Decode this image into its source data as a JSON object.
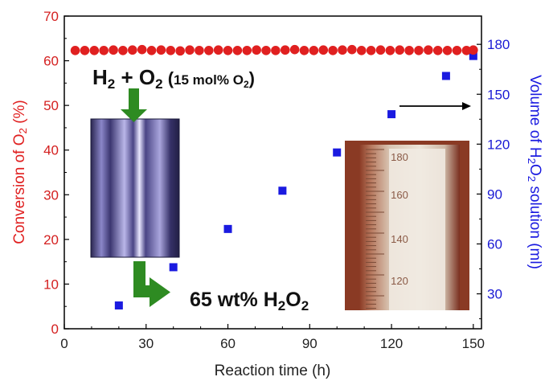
{
  "chart_data": {
    "type": "scatter",
    "xlabel": "Reaction time (h)",
    "x_ticks": [
      0,
      30,
      60,
      90,
      120,
      150
    ],
    "xlim": [
      0,
      153
    ],
    "y_left": {
      "label_parts": [
        "Conversion of O",
        "2",
        " (%)"
      ],
      "ticks": [
        0,
        10,
        20,
        30,
        40,
        50,
        60,
        70
      ],
      "ylim": [
        0,
        70
      ],
      "color": "#e02020"
    },
    "y_right": {
      "label_parts": [
        "Volume of H",
        "2",
        "O",
        "2",
        " solution (ml)"
      ],
      "ticks": [
        30,
        60,
        90,
        120,
        150,
        180
      ],
      "ylim": [
        9,
        197
      ],
      "color": "#1a1ae0"
    },
    "series": [
      {
        "axis": "left",
        "marker": "circle",
        "color": "#e02020",
        "points": [
          [
            4,
            62.3
          ],
          [
            7.5,
            62.3
          ],
          [
            11,
            62.3
          ],
          [
            14.5,
            62.3
          ],
          [
            18,
            62.4
          ],
          [
            21.5,
            62.3
          ],
          [
            25,
            62.4
          ],
          [
            28.5,
            62.5
          ],
          [
            32,
            62.3
          ],
          [
            35.5,
            62.4
          ],
          [
            39,
            62.3
          ],
          [
            42.5,
            62.2
          ],
          [
            46,
            62.4
          ],
          [
            49.5,
            62.3
          ],
          [
            53,
            62.3
          ],
          [
            56.5,
            62.4
          ],
          [
            60,
            62.3
          ],
          [
            63.5,
            62.3
          ],
          [
            67,
            62.3
          ],
          [
            70.5,
            62.4
          ],
          [
            74,
            62.3
          ],
          [
            77.5,
            62.3
          ],
          [
            81,
            62.4
          ],
          [
            84.5,
            62.5
          ],
          [
            88,
            62.3
          ],
          [
            91.5,
            62.3
          ],
          [
            95,
            62.4
          ],
          [
            98.5,
            62.3
          ],
          [
            102,
            62.4
          ],
          [
            105.5,
            62.5
          ],
          [
            109,
            62.3
          ],
          [
            112.5,
            62.3
          ],
          [
            116,
            62.4
          ],
          [
            119.5,
            62.3
          ],
          [
            123,
            62.4
          ],
          [
            126.5,
            62.3
          ],
          [
            130,
            62.3
          ],
          [
            133.5,
            62.4
          ],
          [
            137,
            62.3
          ],
          [
            140.5,
            62.3
          ],
          [
            144,
            62.3
          ],
          [
            147.5,
            62.3
          ],
          [
            150,
            62.4
          ]
        ]
      },
      {
        "axis": "right",
        "marker": "square",
        "color": "#1a1ae0",
        "points": [
          [
            20,
            23
          ],
          [
            40,
            46
          ],
          [
            60,
            69
          ],
          [
            80,
            92
          ],
          [
            100,
            115
          ],
          [
            120,
            138
          ],
          [
            140,
            161
          ],
          [
            150,
            173
          ]
        ]
      }
    ],
    "annotations": {
      "reactant_parts": [
        "H",
        "2",
        " + O",
        "2",
        " (",
        "15 mol% O",
        "2",
        ")"
      ],
      "product_parts": [
        "65 wt% H",
        "2",
        "O",
        "2"
      ],
      "cylinder_marks": [
        "180",
        "160",
        "140",
        "120"
      ]
    }
  }
}
